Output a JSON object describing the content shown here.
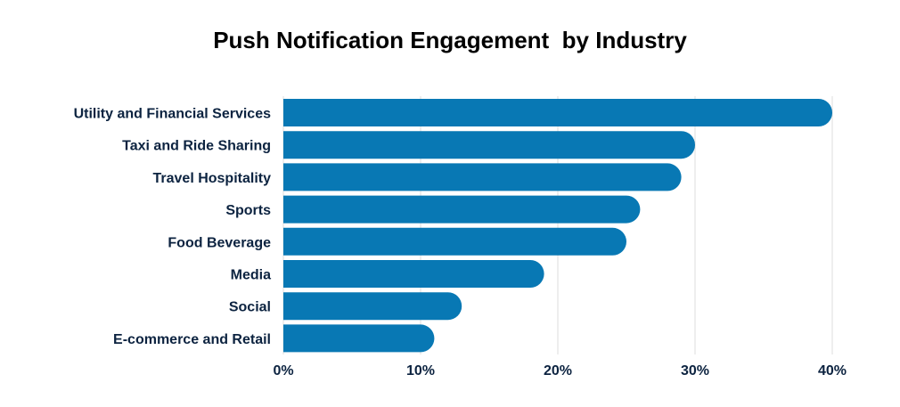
{
  "chart_data": {
    "type": "bar",
    "orientation": "horizontal",
    "title": "Push Notification Engagement  by Industry",
    "categories": [
      "Utility and Financial Services",
      "Taxi and Ride Sharing",
      "Travel Hospitality",
      "Sports",
      "Food Beverage",
      "Media",
      "Social",
      "E-commerce and Retail"
    ],
    "values": [
      40,
      30,
      29,
      26,
      25,
      19,
      13,
      11
    ],
    "value_unit": "%",
    "xlim": [
      0,
      40
    ],
    "xticks": [
      0,
      10,
      20,
      30,
      40
    ],
    "xtick_labels": [
      "0%",
      "10%",
      "20%",
      "30%",
      "40%"
    ],
    "xlabel": "",
    "ylabel": "",
    "grid": true,
    "colors": {
      "bar": "#0878b4",
      "grid": "#dcdcdc",
      "label": "#0c2340"
    }
  }
}
